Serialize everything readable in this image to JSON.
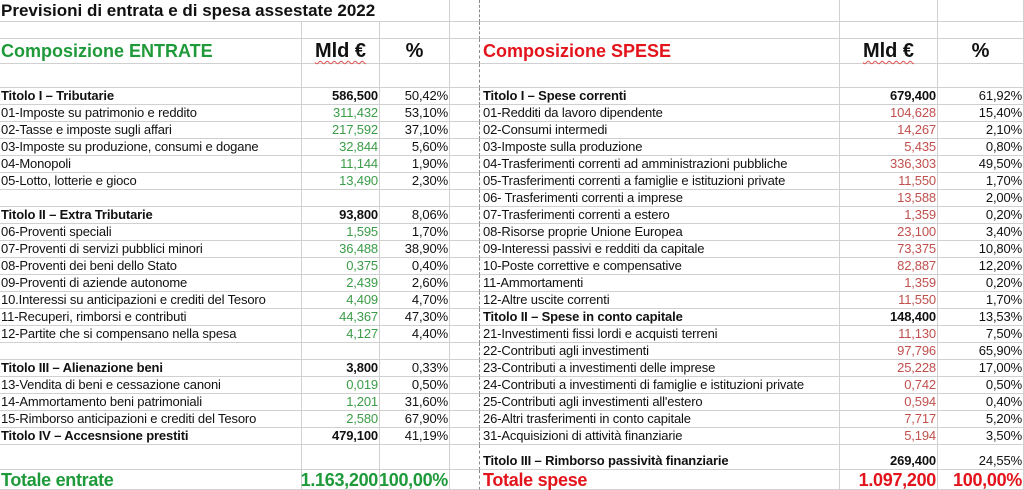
{
  "title": "Previsioni di entrata e di spesa assestate 2022",
  "entrate": {
    "heading": "Composizione ENTRATE",
    "col_value": "Mld €",
    "col_pct": "%",
    "total": {
      "label": "Totale entrate",
      "value": "1.163,200",
      "pct": "100,00%"
    }
  },
  "spese": {
    "heading": "Composizione SPESE",
    "col_value": "Mld €",
    "col_pct": "%",
    "total": {
      "label": "Totale spese",
      "value": "1.097,200",
      "pct": "100,00%"
    }
  },
  "rows": [
    {
      "l": {
        "label": "Titolo I – Tributarie",
        "value": "586,500",
        "pct": "50,42%",
        "bold": true
      },
      "r": {
        "label": "Titolo I – Spese correnti",
        "value": "679,400",
        "pct": "61,92%",
        "bold": true
      }
    },
    {
      "l": {
        "label": "01-Imposte su patrimonio e reddito",
        "value": "311,432",
        "pct": "53,10%"
      },
      "r": {
        "label": "01-Redditi da lavoro dipendente",
        "value": "104,628",
        "pct": "15,40%"
      }
    },
    {
      "l": {
        "label": "02-Tasse e imposte sugli affari",
        "value": "217,592",
        "pct": "37,10%"
      },
      "r": {
        "label": "02-Consumi intermedi",
        "value": "14,267",
        "pct": "2,10%"
      }
    },
    {
      "l": {
        "label": "03-Imposte su produzione, consumi e dogane",
        "value": "32,844",
        "pct": "5,60%"
      },
      "r": {
        "label": "03-Imposte sulla produzione",
        "value": "5,435",
        "pct": "0,80%"
      }
    },
    {
      "l": {
        "label": "04-Monopoli",
        "value": "11,144",
        "pct": "1,90%"
      },
      "r": {
        "label": "04-Trasferimenti correnti ad amministrazioni pubbliche",
        "value": "336,303",
        "pct": "49,50%"
      }
    },
    {
      "l": {
        "label": "05-Lotto, lotterie e gioco",
        "value": "13,490",
        "pct": "2,30%"
      },
      "r": {
        "label": "05-Trasferimenti correnti a famiglie e istituzioni private",
        "value": "11,550",
        "pct": "1,70%"
      }
    },
    {
      "l": null,
      "r": {
        "label": "06- Trasferimenti correnti a imprese",
        "value": "13,588",
        "pct": "2,00%"
      }
    },
    {
      "l": {
        "label": "Titolo II – Extra Tributarie",
        "value": "93,800",
        "pct": "8,06%",
        "bold": true
      },
      "r": {
        "label": "07-Trasferimenti correnti a estero",
        "value": "1,359",
        "pct": "0,20%"
      }
    },
    {
      "l": {
        "label": "06-Proventi speciali",
        "value": "1,595",
        "pct": "1,70%"
      },
      "r": {
        "label": "08-Risorse proprie Unione Europea",
        "value": "23,100",
        "pct": "3,40%"
      }
    },
    {
      "l": {
        "label": "07-Proventi di servizi pubblici minori",
        "value": "36,488",
        "pct": "38,90%"
      },
      "r": {
        "label": "09-Interessi passivi e redditi da capitale",
        "value": "73,375",
        "pct": "10,80%"
      }
    },
    {
      "l": {
        "label": "08-Proventi dei beni dello Stato",
        "value": "0,375",
        "pct": "0,40%"
      },
      "r": {
        "label": "10-Poste correttive e compensative",
        "value": "82,887",
        "pct": "12,20%"
      }
    },
    {
      "l": {
        "label": "09-Proventi di aziende autonome",
        "value": "2,439",
        "pct": "2,60%"
      },
      "r": {
        "label": "11-Ammortamenti",
        "value": "1,359",
        "pct": "0,20%"
      }
    },
    {
      "l": {
        "label": "10.Interessi su anticipazioni e crediti del Tesoro",
        "value": "4,409",
        "pct": "4,70%"
      },
      "r": {
        "label": "12-Altre uscite correnti",
        "value": "11,550",
        "pct": "1,70%"
      }
    },
    {
      "l": {
        "label": "11-Recuperi, rimborsi e contributi",
        "value": "44,367",
        "pct": "47,30%"
      },
      "r": {
        "label": "Titolo II – Spese in conto capitale",
        "value": "148,400",
        "pct": "13,53%",
        "bold": true
      }
    },
    {
      "l": {
        "label": "12-Partite che si compensano nella spesa",
        "value": "4,127",
        "pct": "4,40%"
      },
      "r": {
        "label": "21-Investimenti fissi lordi e acquisti terreni",
        "value": "11,130",
        "pct": "7,50%"
      }
    },
    {
      "l": null,
      "r": {
        "label": "22-Contributi agli investimenti",
        "value": "97,796",
        "pct": "65,90%"
      }
    },
    {
      "l": {
        "label": "Titolo III – Alienazione beni",
        "value": "3,800",
        "pct": "0,33%",
        "bold": true
      },
      "r": {
        "label": "23-Contributi a investimenti delle imprese",
        "value": "25,228",
        "pct": "17,00%"
      }
    },
    {
      "l": {
        "label": "13-Vendita di beni e cessazione canoni",
        "value": "0,019",
        "pct": "0,50%"
      },
      "r": {
        "label": "24-Contributi a investimenti di famiglie e istituzioni private",
        "value": "0,742",
        "pct": "0,50%"
      }
    },
    {
      "l": {
        "label": "14-Ammortamento beni patrimoniali",
        "value": "1,201",
        "pct": "31,60%"
      },
      "r": {
        "label": "25-Contributi agli investimenti all'estero",
        "value": "0,594",
        "pct": "0,40%"
      }
    },
    {
      "l": {
        "label": "15-Rimborso anticipazioni e crediti del Tesoro",
        "value": "2,580",
        "pct": "67,90%"
      },
      "r": {
        "label": "26-Altri trasferimenti in conto capitale",
        "value": "7,717",
        "pct": "5,20%"
      }
    },
    {
      "l": {
        "label": "Titolo IV – Accesnsione prestiti",
        "value": "479,100",
        "pct": "41,19%",
        "bold": true
      },
      "r": {
        "label": "31-Acquisizioni di attività finanziarie",
        "value": "5,194",
        "pct": "3,50%"
      }
    },
    {
      "l": null,
      "r": {
        "label": "Titolo III – Rimborso passività finanziarie",
        "value": "269,400",
        "pct": "24,55%",
        "bold": true
      }
    }
  ],
  "colors": {
    "green_heading": "#1f9a3a",
    "green_value": "#3b9c47",
    "red_heading": "#e3141b",
    "red_value": "#c0504d"
  }
}
